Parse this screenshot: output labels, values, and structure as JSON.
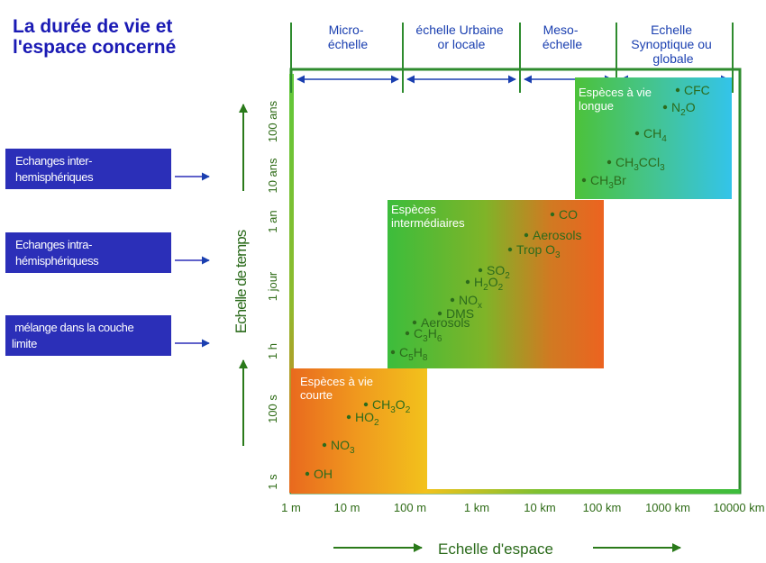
{
  "title": {
    "line1": "La durée de vie et",
    "line2": "l'espace concerné"
  },
  "exchanges": [
    {
      "line1": "Echanges inter-",
      "line2": "hemisphériques"
    },
    {
      "line1": "Echanges intra-",
      "line2": "hémisphériquess"
    },
    {
      "line1": " mélange dans la couche",
      "line2": "limite"
    }
  ],
  "spatial_scales": [
    {
      "line1": "Micro-",
      "line2": "échelle"
    },
    {
      "line1": "échelle Urbaine",
      "line2": "or locale"
    },
    {
      "line1": "Meso-",
      "line2": "échelle"
    },
    {
      "line1": "Echelle",
      "line2": "Synoptique ou",
      "line3": "globale"
    }
  ],
  "x_ticks": [
    "1 m",
    "10 m",
    "100 m",
    "1 km",
    "10 km",
    "100 km",
    "1000 km",
    "10000 km"
  ],
  "y_ticks": [
    "1 s",
    "100 s",
    "1 h",
    "1 jour",
    "1 an",
    "10 ans",
    "100 ans"
  ],
  "x_axis_title": "Echelle d'espace",
  "y_axis_title": "Echelle de temps",
  "species_boxes": {
    "short": {
      "line1": "Espèces à vie",
      "line2": "courte"
    },
    "intermediate": {
      "line1": "Espèces",
      "line2": "intermédiaires"
    },
    "long": {
      "line1": "Espèces à vie",
      "line2": "longue"
    }
  },
  "species": {
    "short": [
      {
        "name": "CH",
        "sub1": "3",
        "rest": "O",
        "sub2": "2"
      },
      {
        "name": "HO",
        "sub1": "2"
      },
      {
        "name": "NO",
        "sub1": "3"
      },
      {
        "name": "OH"
      }
    ],
    "intermediate": [
      {
        "name": "CO"
      },
      {
        "name": "Aerosols"
      },
      {
        "name": "Trop O",
        "sub1": "3"
      },
      {
        "name": "SO",
        "sub1": "2"
      },
      {
        "name": "H",
        "sub1": "2",
        "rest": "O",
        "sub2": "2"
      },
      {
        "name": "NO",
        "sub1": "x"
      },
      {
        "name": "DMS"
      },
      {
        "name": "Aerosols"
      },
      {
        "name": "C",
        "sub1": "3",
        "rest": "H",
        "sub2": "6"
      },
      {
        "name": "C",
        "sub1": "5",
        "rest": "H",
        "sub2": "8"
      }
    ],
    "long": [
      {
        "name": "CFC"
      },
      {
        "name": "N",
        "sub1": "2",
        "rest": "O"
      },
      {
        "name": "CH",
        "sub1": "4"
      },
      {
        "name": "CH",
        "sub1": "3",
        "rest": "CCl",
        "sub2": "3"
      },
      {
        "name": "CH",
        "sub1": "3",
        "rest": "Br"
      }
    ]
  },
  "colors": {
    "title": "#1a1ab4",
    "exchange_box": "#2b2fb8",
    "frame_green": "#2e8b2e",
    "scale_blue": "#1a3fb0",
    "label_green": "#2e6b16",
    "short_gradient": [
      "#e96a1e",
      "#f2c21c"
    ],
    "intermediate_gradient": [
      "#3cbd3c",
      "#ec6320"
    ],
    "long_gradient": [
      "#4cc23a",
      "#33c4ea"
    ]
  }
}
